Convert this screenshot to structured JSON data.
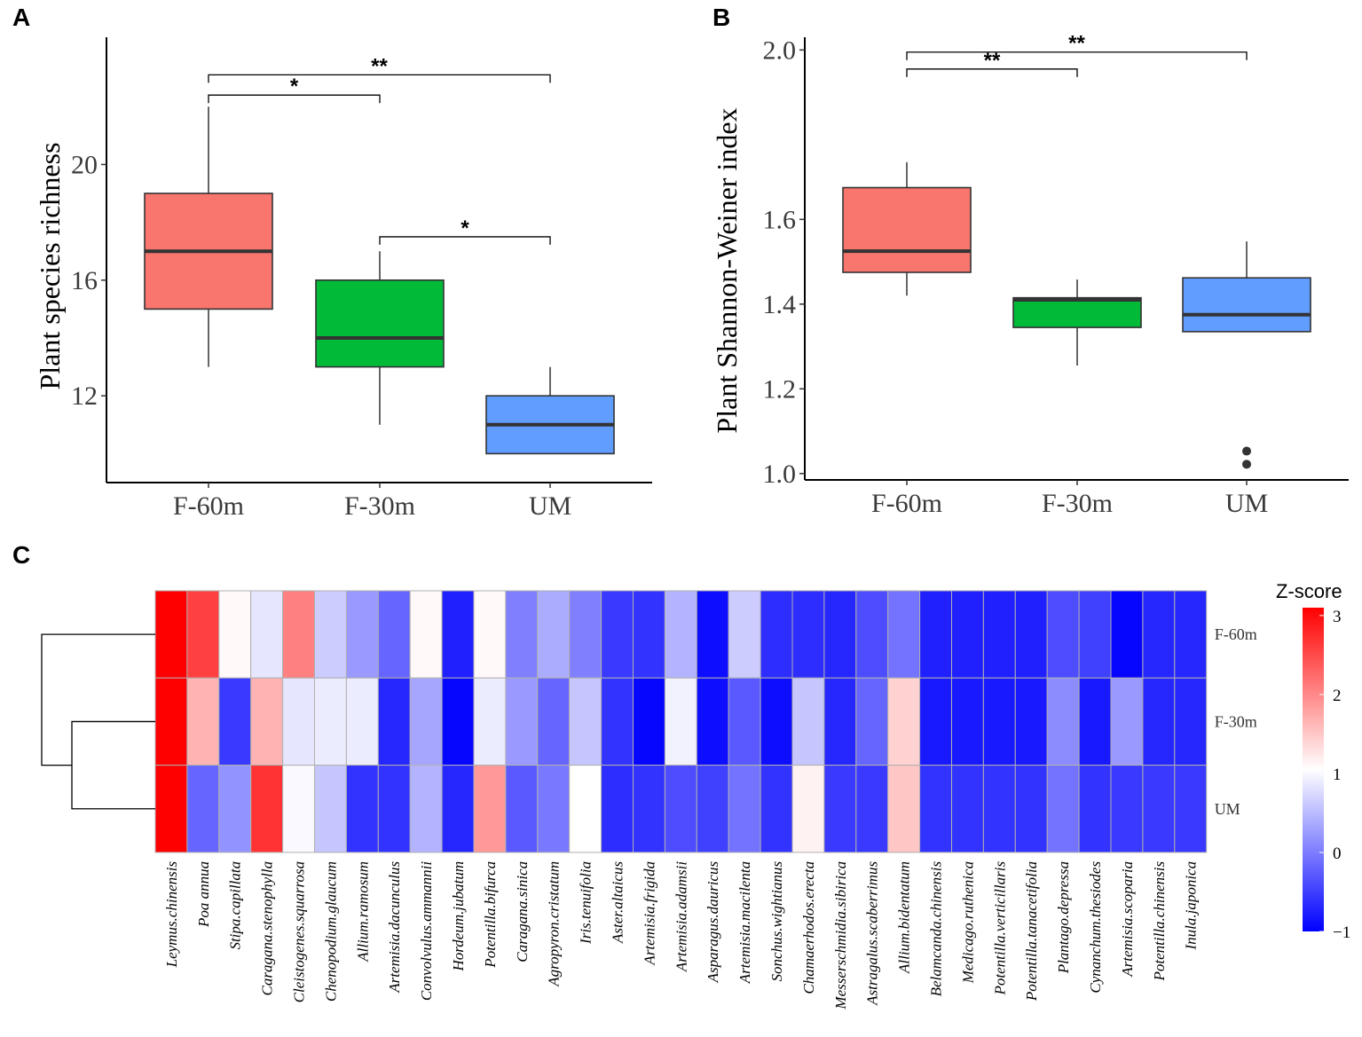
{
  "panels": {
    "a": "A",
    "b": "B",
    "c": "C"
  },
  "colors": {
    "F-60m": "#f8766d",
    "F-30m": "#00ba38",
    "UM": "#619cff"
  },
  "chart_data": [
    {
      "type": "box",
      "id": "A",
      "title": "",
      "xlabel": "",
      "ylabel": "Plant species richness",
      "categories": [
        "F-60m",
        "F-30m",
        "UM"
      ],
      "ylim": [
        9,
        24.4
      ],
      "yticks": [
        12,
        16,
        20
      ],
      "boxes": [
        {
          "name": "F-60m",
          "whisker_low": 13,
          "q1": 15,
          "median": 17,
          "q3": 19,
          "whisker_high": 22,
          "outliers": []
        },
        {
          "name": "F-30m",
          "whisker_low": 11,
          "q1": 13,
          "median": 14,
          "q3": 16,
          "whisker_high": 17,
          "outliers": []
        },
        {
          "name": "UM",
          "whisker_low": 10,
          "q1": 10,
          "median": 11,
          "q3": 12,
          "whisker_high": 13,
          "outliers": []
        }
      ],
      "significance": [
        {
          "from": "F-60m",
          "to": "F-30m",
          "label": "*",
          "y": 22.4
        },
        {
          "from": "F-60m",
          "to": "UM",
          "label": "**",
          "y": 23.1
        },
        {
          "from": "F-30m",
          "to": "UM",
          "label": "*",
          "y": 17.5
        }
      ]
    },
    {
      "type": "box",
      "id": "B",
      "title": "",
      "xlabel": "",
      "ylabel": "Plant Shannon-Weiner index",
      "categories": [
        "F-60m",
        "F-30m",
        "UM"
      ],
      "ylim": [
        0.985,
        2.03
      ],
      "yticks": [
        "1.0",
        "1.2",
        "1.4",
        "1.6",
        "2.0"
      ],
      "boxes": [
        {
          "name": "F-60m",
          "whisker_low": 1.42,
          "q1": 1.475,
          "median": 1.525,
          "q3": 1.675,
          "whisker_high": 1.735,
          "outliers": []
        },
        {
          "name": "F-30m",
          "whisker_low": 1.255,
          "q1": 1.345,
          "median": 1.41,
          "q3": 1.415,
          "whisker_high": 1.458,
          "outliers": []
        },
        {
          "name": "UM",
          "whisker_low": 1.335,
          "q1": 1.335,
          "median": 1.375,
          "q3": 1.462,
          "whisker_high": 1.548,
          "outliers": [
            1.053,
            1.022
          ]
        }
      ],
      "significance": [
        {
          "from": "F-60m",
          "to": "F-30m",
          "label": "**",
          "y": 1.955
        },
        {
          "from": "F-60m",
          "to": "UM",
          "label": "**",
          "y": 1.995
        }
      ]
    },
    {
      "type": "heatmap",
      "id": "C",
      "rows": [
        "F-60m",
        "F-30m",
        "UM"
      ],
      "columns": [
        "Leymus.chinensis",
        "Poa annua",
        "Stipa.capillata",
        "Caragana.stenophylla",
        "Cleistogenes.squarrosa",
        "Chenopodium.glaucum",
        "Allium.ramosum",
        "Artemisia.dacunculus",
        "Convolvulus.ammannii",
        "Hordeum.jubatum",
        "Potentilla.bifurca",
        "Caragana.sinica",
        "Agropyron.cristatum",
        "Iris.tenuifolia",
        "Aster.altaicus",
        "Artemisia.frigida",
        "Artemisia.adamsii",
        "Asparagus.dauricus",
        "Artemisia.macilenta",
        "Sonchus.wightianus",
        "Chamaerhodos.erecta",
        "Messerschmidia.sibirica",
        "Astragalus.scaberrimus",
        "Allium.bidentatum",
        "Belamcanda.chinensis",
        "Medicago.ruthenica",
        "Potentilla.verticillaris",
        "Potentilla.tanacetifolia",
        "Plantago.depressa",
        "Cynanchum.thesiodes",
        "Artemisia.scoparia",
        "Potentilla.chinensis",
        "Inula.japonica"
      ],
      "values": [
        [
          3.1,
          2.5,
          1.05,
          0.8,
          2.0,
          0.6,
          0.2,
          -0.2,
          1.05,
          -0.75,
          1.05,
          0.0,
          0.35,
          0.0,
          -0.55,
          -0.6,
          0.4,
          -0.9,
          0.6,
          -0.65,
          -0.65,
          -0.7,
          -0.4,
          -0.1,
          -0.75,
          -0.75,
          -0.75,
          -0.75,
          -0.4,
          -0.5,
          -0.95,
          -0.7,
          -0.7
        ],
        [
          3.1,
          1.6,
          -0.55,
          1.6,
          0.8,
          0.85,
          0.85,
          -0.7,
          0.3,
          -0.95,
          0.85,
          0.2,
          -0.2,
          0.55,
          -0.6,
          -0.95,
          0.9,
          -0.9,
          -0.3,
          -0.9,
          0.55,
          -0.7,
          -0.2,
          1.35,
          -0.8,
          -0.8,
          -0.8,
          -0.8,
          0.1,
          -0.8,
          0.2,
          -0.7,
          -0.7
        ],
        [
          3.1,
          -0.2,
          0.15,
          2.6,
          0.95,
          0.55,
          -0.6,
          -0.6,
          0.4,
          -0.7,
          1.8,
          -0.3,
          -0.05,
          1.0,
          -0.65,
          -0.6,
          -0.4,
          -0.5,
          -0.1,
          -0.6,
          1.1,
          -0.55,
          -0.55,
          1.45,
          -0.6,
          -0.6,
          -0.6,
          -0.6,
          -0.1,
          -0.6,
          -0.55,
          -0.55,
          -0.55
        ]
      ],
      "legend": {
        "title": "Z-score",
        "ticks": [
          "3",
          "2",
          "1",
          "0",
          "−1"
        ],
        "range": [
          -1,
          3.1
        ]
      },
      "dendrogram": "rows: F-30m and UM cluster first, then join F-60m"
    }
  ]
}
